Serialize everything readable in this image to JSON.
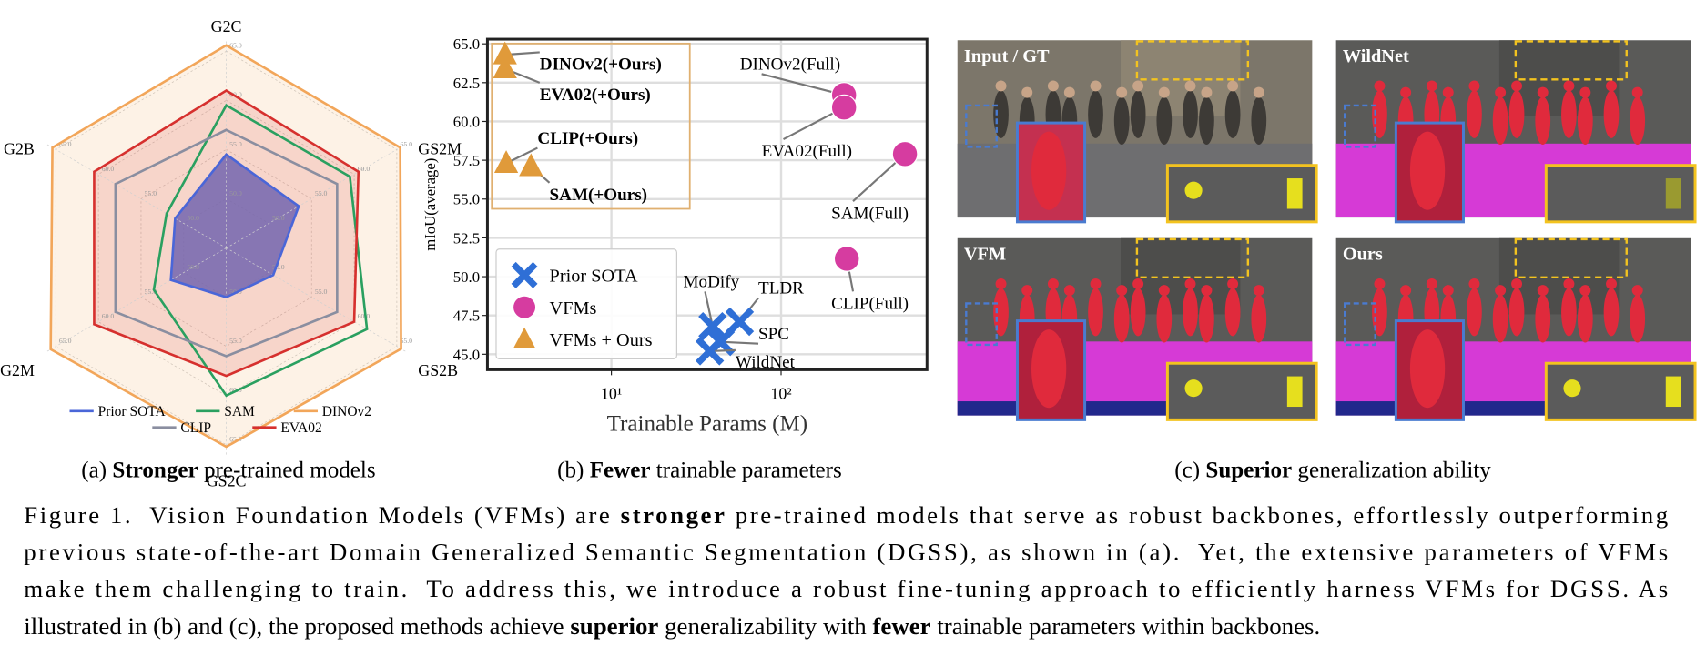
{
  "chart_data": [
    {
      "type": "radar",
      "axes": [
        "G2C",
        "GS2M",
        "GS2B",
        "GS2C",
        "G2M",
        "G2B"
      ],
      "rlim": [
        45,
        66
      ],
      "rticks": [
        {
          "value": 50,
          "label": "50.0"
        },
        {
          "value": 55,
          "label": "55.0"
        },
        {
          "value": 60,
          "label": "60.0"
        },
        {
          "value": 65,
          "label": "65.0"
        }
      ],
      "series": [
        {
          "name": "Prior SOTA",
          "color": "#4a66d8",
          "fill": true,
          "values": [
            54.5,
            53.5,
            50.5,
            50.0,
            51.5,
            51.0
          ]
        },
        {
          "name": "SAM",
          "color": "#2aa060",
          "fill": false,
          "values": [
            59.5,
            59.5,
            61.5,
            60.0,
            53.5,
            52.0
          ]
        },
        {
          "name": "DINOv2",
          "color": "#f2a65a",
          "fill": true,
          "values": [
            65.6,
            65.4,
            65.5,
            65.2,
            65.6,
            65.4
          ]
        },
        {
          "name": "CLIP",
          "color": "#8a8ea0",
          "fill": false,
          "values": [
            57.0,
            58.0,
            58.0,
            56.0,
            58.0,
            58.0
          ]
        },
        {
          "name": "EVA02",
          "color": "#d6302e",
          "fill": true,
          "values": [
            61.0,
            60.5,
            60.0,
            58.0,
            60.5,
            60.5
          ]
        }
      ],
      "grid": true,
      "legend": "bottom"
    },
    {
      "type": "scatter",
      "xlabel": "Trainable Params (M)",
      "ylabel": "mIoU(average)",
      "xscale": "log",
      "xlim": [
        1.86,
        724
      ],
      "xticks": [
        {
          "value": 10,
          "label": "10¹"
        },
        {
          "value": 100,
          "label": "10²"
        }
      ],
      "ylim": [
        44,
        65.3
      ],
      "yticks": [
        {
          "value": 45,
          "label": "45.0"
        },
        {
          "value": 47.5,
          "label": "47.5"
        },
        {
          "value": 50,
          "label": "50.0"
        },
        {
          "value": 52.5,
          "label": "52.5"
        },
        {
          "value": 55,
          "label": "55.0"
        },
        {
          "value": 57.5,
          "label": "57.5"
        },
        {
          "value": 60,
          "label": "60.0"
        },
        {
          "value": 62.5,
          "label": "62.5"
        },
        {
          "value": 65,
          "label": "65.0"
        }
      ],
      "grid": true,
      "legend": "lower left",
      "series": [
        {
          "name": "Prior SOTA",
          "color": "#2f6fd6",
          "marker": "x",
          "x": [
            39.5,
            57,
            44,
            38
          ],
          "values": [
            46.8,
            47.1,
            45.8,
            45.2
          ],
          "labels": [
            "MoDify",
            "TLDR",
            "SPC",
            "WildNet"
          ]
        },
        {
          "name": "VFMs",
          "color": "#d63ca0",
          "marker": "circle",
          "x": [
            235,
            235,
            537,
            244
          ],
          "values": [
            61.7,
            60.9,
            57.9,
            51.15
          ],
          "labels": [
            "DINOv2(Full)",
            "EVA02(Full)",
            "SAM(Full)",
            "CLIP(Full)"
          ]
        },
        {
          "name": "VFMs + Ours",
          "color": "#e09a3a",
          "marker": "triangle",
          "x": [
            2.36,
            2.36,
            2.4,
            3.36
          ],
          "values": [
            64.3,
            63.4,
            57.3,
            57.1
          ],
          "labels": [
            "DINOv2(+Ours)",
            "EVA02(+Ours)",
            "CLIP(+Ours)",
            "SAM(+Ours)"
          ]
        }
      ]
    }
  ],
  "image_panels": {
    "labels": [
      "Input / GT",
      "WildNet",
      "VFM",
      "Ours"
    ]
  },
  "subcaptions": [
    [
      "(a) ",
      "Stronger",
      " pre-trained models"
    ],
    [
      "(b) ",
      "Fewer",
      " trainable parameters"
    ],
    [
      "(c) ",
      "Superior",
      " generalization ability"
    ]
  ],
  "caption": [
    [
      "Figure 1.  Vision Foundation Models (VFMs) are ",
      "stronger",
      " pre-trained models that serve as robust backbones, effortlessly outperforming"
    ],
    [
      "previous state-of-the-art Domain Generalized Semantic Segmentation (DGSS), as shown in (a).  Yet, the extensive parameters of VFMs"
    ],
    [
      "make them challenging to train.  To address this, we introduce a robust fine-tuning approach to efficiently harness VFMs for DGSS. As"
    ],
    [
      "illustrated in (b) and (c), the proposed methods achieve ",
      "superior",
      " generalizability with ",
      "fewer",
      " trainable parameters within backbones."
    ]
  ]
}
